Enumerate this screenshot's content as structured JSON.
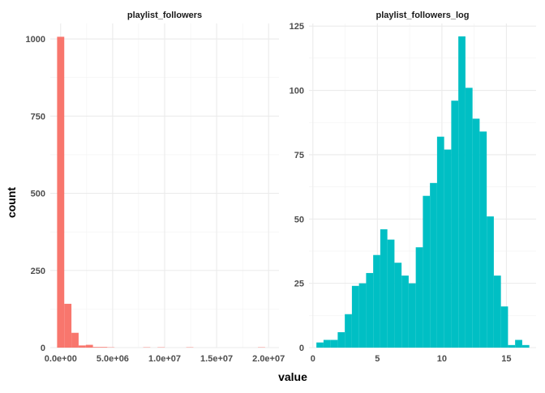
{
  "chart_data": {
    "type": "bar",
    "xlabel": "value",
    "ylabel": "count",
    "grid": true,
    "legend": "none",
    "panels": [
      {
        "title": "playlist_followers",
        "color": "#F8766D",
        "xlim": [
          -1000000,
          21000000
        ],
        "ylim": [
          0,
          1050
        ],
        "xticks": [
          0,
          5000000,
          10000000,
          15000000,
          20000000
        ],
        "xtick_labels": [
          "0.0e+00",
          "5.0e+06",
          "1.0e+07",
          "1.5e+07",
          "2.0e+07"
        ],
        "yticks": [
          0,
          250,
          500,
          750,
          1000
        ],
        "ytick_labels": [
          "0",
          "250",
          "500",
          "750",
          "1000"
        ],
        "bin_width": 690000,
        "bins": [
          {
            "x": 0,
            "count": 1007
          },
          {
            "x": 690000,
            "count": 142
          },
          {
            "x": 1380000,
            "count": 48
          },
          {
            "x": 2070000,
            "count": 7
          },
          {
            "x": 2760000,
            "count": 9
          },
          {
            "x": 3450000,
            "count": 2
          },
          {
            "x": 4140000,
            "count": 2
          },
          {
            "x": 4830000,
            "count": 1
          },
          {
            "x": 8280000,
            "count": 1
          },
          {
            "x": 9660000,
            "count": 1
          },
          {
            "x": 12420000,
            "count": 1
          },
          {
            "x": 19320000,
            "count": 1
          }
        ]
      },
      {
        "title": "playlist_followers_log",
        "color": "#00BFC4",
        "xlim": [
          -0.3,
          17.3
        ],
        "ylim": [
          0,
          126
        ],
        "xticks": [
          0,
          5,
          10,
          15
        ],
        "xtick_labels": [
          "0",
          "5",
          "10",
          "15"
        ],
        "yticks": [
          0,
          25,
          50,
          75,
          100,
          125
        ],
        "ytick_labels": [
          "0",
          "25",
          "50",
          "75",
          "100",
          "125"
        ],
        "bin_width": 0.55,
        "bins": [
          {
            "x": 0.55,
            "count": 2
          },
          {
            "x": 1.1,
            "count": 3
          },
          {
            "x": 1.65,
            "count": 3
          },
          {
            "x": 2.2,
            "count": 6
          },
          {
            "x": 2.75,
            "count": 13
          },
          {
            "x": 3.3,
            "count": 24
          },
          {
            "x": 3.85,
            "count": 25
          },
          {
            "x": 4.4,
            "count": 29
          },
          {
            "x": 4.95,
            "count": 36
          },
          {
            "x": 5.5,
            "count": 46
          },
          {
            "x": 6.05,
            "count": 42
          },
          {
            "x": 6.6,
            "count": 33
          },
          {
            "x": 7.15,
            "count": 28
          },
          {
            "x": 7.7,
            "count": 25
          },
          {
            "x": 8.25,
            "count": 39
          },
          {
            "x": 8.8,
            "count": 59
          },
          {
            "x": 9.35,
            "count": 64
          },
          {
            "x": 9.9,
            "count": 82
          },
          {
            "x": 10.45,
            "count": 77
          },
          {
            "x": 11.0,
            "count": 96
          },
          {
            "x": 11.55,
            "count": 121
          },
          {
            "x": 12.1,
            "count": 101
          },
          {
            "x": 12.65,
            "count": 89
          },
          {
            "x": 13.2,
            "count": 84
          },
          {
            "x": 13.75,
            "count": 51
          },
          {
            "x": 14.3,
            "count": 28
          },
          {
            "x": 14.85,
            "count": 16
          },
          {
            "x": 15.4,
            "count": 1
          },
          {
            "x": 15.95,
            "count": 3
          },
          {
            "x": 16.5,
            "count": 1
          }
        ]
      }
    ]
  }
}
